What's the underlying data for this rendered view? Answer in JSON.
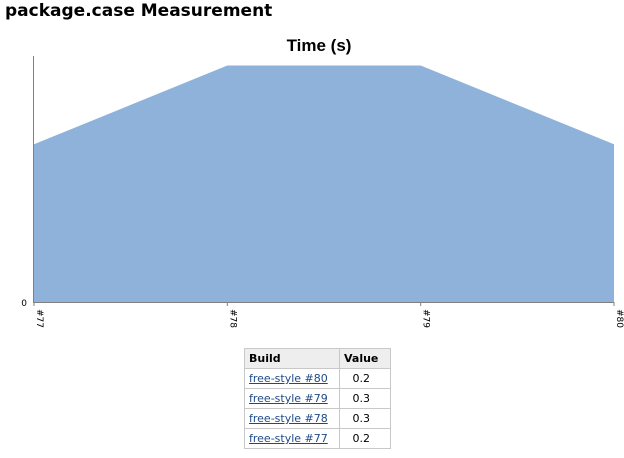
{
  "page": {
    "title": "package.case Measurement"
  },
  "chart_data": {
    "type": "area",
    "title": "Time (s)",
    "xlabel": "",
    "ylabel": "",
    "categories": [
      "#77",
      "#78",
      "#79",
      "#80"
    ],
    "series": [
      {
        "values": [
          0.2,
          0.3,
          0.3,
          0.2
        ]
      }
    ],
    "ylim": [
      0,
      0.312
    ],
    "y_ticks": [
      "0"
    ],
    "grid": false,
    "legend": "none",
    "fill_color": "#8fb2db"
  },
  "table": {
    "headers": [
      "Build",
      "Value"
    ],
    "rows": [
      {
        "build": "free-style #80",
        "value": "0.2"
      },
      {
        "build": "free-style #79",
        "value": "0.3"
      },
      {
        "build": "free-style #78",
        "value": "0.3"
      },
      {
        "build": "free-style #77",
        "value": "0.2"
      }
    ]
  }
}
